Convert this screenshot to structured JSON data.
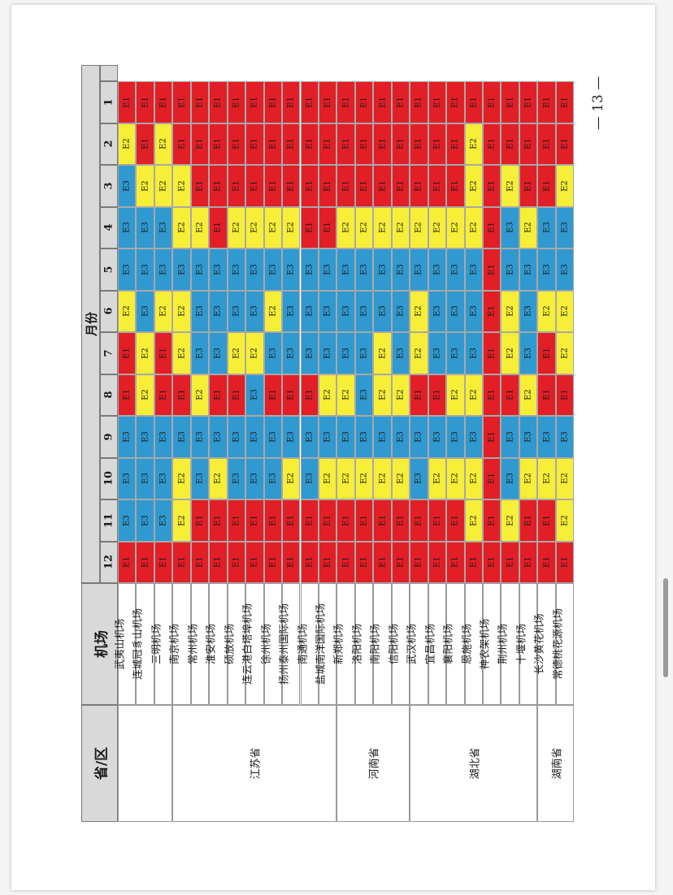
{
  "page_number": "— 13 —",
  "colors": {
    "E1": "#e21f26",
    "E2": "#f7ee38",
    "E3": "#3099cf"
  },
  "header": {
    "province_col": "省/区",
    "airport_col": "机场",
    "months_title": "月份"
  },
  "months": [
    "1",
    "2",
    "3",
    "4",
    "5",
    "6",
    "7",
    "8",
    "9",
    "10",
    "11",
    "12"
  ],
  "provinces": [
    {
      "name": "",
      "span": 3
    },
    {
      "name": "江苏省",
      "span": 9
    },
    {
      "name": "河南省",
      "span": 4
    },
    {
      "name": "湖北省",
      "span": 7
    },
    {
      "name": "湖南省",
      "span": 2
    }
  ],
  "airports": [
    {
      "name": "武夷山机场",
      "grades": [
        "E1",
        "E2",
        "E3",
        "E3",
        "E3",
        "E2",
        "E1",
        "E1",
        "E3",
        "E3",
        "E3",
        "E1"
      ]
    },
    {
      "name": "连城冠豸山机场",
      "grades": [
        "E1",
        "E1",
        "E2",
        "E3",
        "E3",
        "E3",
        "E2",
        "E2",
        "E3",
        "E3",
        "E3",
        "E1"
      ]
    },
    {
      "name": "三明机场",
      "grades": [
        "E1",
        "E2",
        "E2",
        "E3",
        "E3",
        "E2",
        "E1",
        "E1",
        "E3",
        "E3",
        "E3",
        "E1"
      ]
    },
    {
      "name": "南京机场",
      "grades": [
        "E1",
        "E1",
        "E2",
        "E2",
        "E3",
        "E2",
        "E2",
        "E1",
        "E3",
        "E2",
        "E2",
        "E1"
      ]
    },
    {
      "name": "常州机场",
      "grades": [
        "E1",
        "E1",
        "E1",
        "E2",
        "E3",
        "E3",
        "E3",
        "E2",
        "E3",
        "E3",
        "E1",
        "E1"
      ]
    },
    {
      "name": "淮安机场",
      "grades": [
        "E1",
        "E1",
        "E1",
        "E1",
        "E3",
        "E3",
        "E3",
        "E1",
        "E3",
        "E2",
        "E1",
        "E1"
      ]
    },
    {
      "name": "硕放机场",
      "grades": [
        "E1",
        "E1",
        "E1",
        "E2",
        "E3",
        "E3",
        "E2",
        "E1",
        "E3",
        "E3",
        "E1",
        "E1"
      ]
    },
    {
      "name": "连云港白塔埠机场",
      "grades": [
        "E1",
        "E1",
        "E1",
        "E2",
        "E3",
        "E3",
        "E2",
        "E3",
        "E3",
        "E3",
        "E1",
        "E1"
      ]
    },
    {
      "name": "徐州机场",
      "grades": [
        "E1",
        "E1",
        "E1",
        "E2",
        "E3",
        "E2",
        "E3",
        "E1",
        "E3",
        "E3",
        "E1",
        "E1"
      ]
    },
    {
      "name": "扬州泰州国际机场",
      "grades": [
        "E1",
        "E1",
        "E1",
        "E2",
        "E3",
        "E3",
        "E3",
        "E1",
        "E3",
        "E2",
        "E1",
        "E1"
      ]
    },
    {
      "name": "南通机场",
      "grades": [
        "E1",
        "E1",
        "E1",
        "E1",
        "E3",
        "E3",
        "E3",
        "E1",
        "E3",
        "E3",
        "E1",
        "E1"
      ]
    },
    {
      "name": "盐城南洋国际机场",
      "grades": [
        "E1",
        "E1",
        "E1",
        "E1",
        "E3",
        "E3",
        "E3",
        "E2",
        "E3",
        "E2",
        "E1",
        "E1"
      ]
    },
    {
      "name": "新郑机场",
      "grades": [
        "E1",
        "E1",
        "E1",
        "E2",
        "E3",
        "E3",
        "E3",
        "E2",
        "E3",
        "E2",
        "E1",
        "E1"
      ]
    },
    {
      "name": "洛阳机场",
      "grades": [
        "E1",
        "E1",
        "E1",
        "E2",
        "E3",
        "E3",
        "E3",
        "E3",
        "E3",
        "E2",
        "E1",
        "E1"
      ]
    },
    {
      "name": "南阳机场",
      "grades": [
        "E1",
        "E1",
        "E1",
        "E2",
        "E3",
        "E3",
        "E2",
        "E2",
        "E3",
        "E2",
        "E1",
        "E1"
      ]
    },
    {
      "name": "信阳机场",
      "grades": [
        "E1",
        "E1",
        "E1",
        "E2",
        "E3",
        "E3",
        "E3",
        "E2",
        "E3",
        "E2",
        "E1",
        "E1"
      ]
    },
    {
      "name": "武汉机场",
      "grades": [
        "E1",
        "E1",
        "E1",
        "E2",
        "E3",
        "E2",
        "E2",
        "E1",
        "E3",
        "E3",
        "E1",
        "E1"
      ]
    },
    {
      "name": "宜昌机场",
      "grades": [
        "E1",
        "E1",
        "E1",
        "E2",
        "E3",
        "E3",
        "E3",
        "E1",
        "E3",
        "E2",
        "E1",
        "E1"
      ]
    },
    {
      "name": "襄阳机场",
      "grades": [
        "E1",
        "E1",
        "E1",
        "E2",
        "E3",
        "E3",
        "E3",
        "E2",
        "E3",
        "E2",
        "E1",
        "E1"
      ]
    },
    {
      "name": "恩施机场",
      "grades": [
        "E1",
        "E2",
        "E2",
        "E2",
        "E3",
        "E3",
        "E3",
        "E2",
        "E3",
        "E2",
        "E2",
        "E1"
      ]
    },
    {
      "name": "神农架机场",
      "grades": [
        "E1",
        "E1",
        "E1",
        "E1",
        "E1",
        "E1",
        "E1",
        "E1",
        "E1",
        "E1",
        "E1",
        "E1"
      ]
    },
    {
      "name": "荆州机场",
      "grades": [
        "E1",
        "E1",
        "E2",
        "E3",
        "E3",
        "E2",
        "E2",
        "E1",
        "E3",
        "E3",
        "E2",
        "E1"
      ]
    },
    {
      "name": "十堰机场",
      "grades": [
        "E1",
        "E1",
        "E1",
        "E2",
        "E3",
        "E3",
        "E3",
        "E2",
        "E3",
        "E2",
        "E1",
        "E1"
      ]
    },
    {
      "name": "长沙黄花机场",
      "grades": [
        "E1",
        "E1",
        "E1",
        "E3",
        "E3",
        "E2",
        "E1",
        "E1",
        "E3",
        "E2",
        "E1",
        "E1"
      ]
    },
    {
      "name": "常德桃花源机场",
      "grades": [
        "E1",
        "E1",
        "E2",
        "E3",
        "E3",
        "E2",
        "E2",
        "E1",
        "E3",
        "E2",
        "E2",
        "E1"
      ]
    }
  ]
}
